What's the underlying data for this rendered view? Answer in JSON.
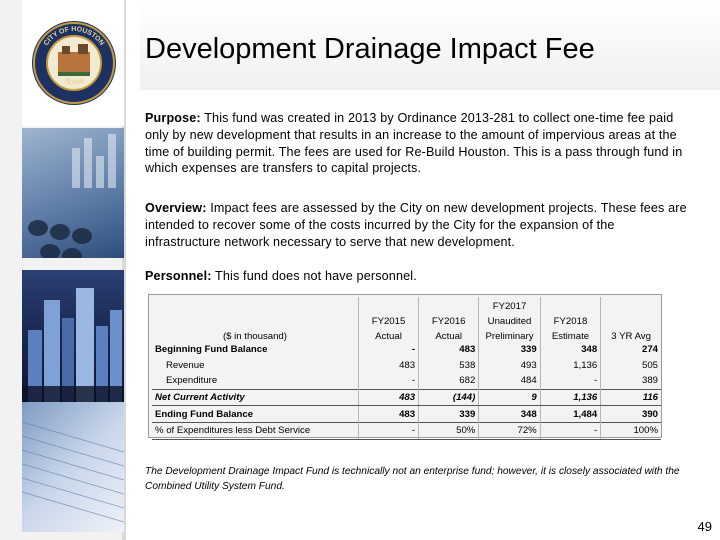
{
  "title": "Development Drainage Impact Fee",
  "purpose": {
    "label": "Purpose:",
    "text": "This fund was created in 2013 by Ordinance 2013-281 to collect one-time fee paid only by new development that results in an increase to the amount of impervious areas at the time of building permit. The fees are used for Re-Build Houston. This is a pass through fund in which expenses are transfers to capital projects."
  },
  "overview": {
    "label": "Overview:",
    "text": "Impact fees are assessed by the City on new development projects. These fees are intended to recover some of the costs incurred by the City for the expansion of the infrastructure network necessary to serve that new development."
  },
  "personnel": {
    "label": "Personnel:",
    "text": "This fund does not have personnel."
  },
  "table": {
    "unit_label": "($ in thousand)",
    "headers": [
      {
        "l1": "",
        "l2": "FY2015",
        "l3": "Actual"
      },
      {
        "l1": "",
        "l2": "FY2016",
        "l3": "Actual"
      },
      {
        "l1": "FY2017",
        "l2": "Unaudited",
        "l3": "Preliminary"
      },
      {
        "l1": "",
        "l2": "FY2018",
        "l3": "Estimate"
      },
      {
        "l1": "",
        "l2": "",
        "l3": "3 YR Avg"
      }
    ],
    "rows": [
      {
        "label": "Beginning Fund Balance",
        "values": [
          "-",
          "483",
          "339",
          "348",
          "274"
        ]
      },
      {
        "label": "Revenue",
        "values": [
          "483",
          "538",
          "493",
          "1,136",
          "505"
        ]
      },
      {
        "label": "Expenditure",
        "values": [
          "-",
          "682",
          "484",
          "-",
          "389"
        ]
      },
      {
        "label": "Net Current Activity",
        "values": [
          "483",
          "(144)",
          "9",
          "1,136",
          "116"
        ]
      },
      {
        "label": "Ending Fund Balance",
        "values": [
          "483",
          "339",
          "348",
          "1,484",
          "390"
        ]
      },
      {
        "label": "% of Expenditures less Debt Service",
        "values": [
          "-",
          "50%",
          "72%",
          "-",
          "100%"
        ]
      }
    ]
  },
  "footnote": "The Development Drainage Impact Fund is technically not an enterprise fund; however, it is closely associated with the Combined Utility System Fund.",
  "page_number": "49",
  "seal": {
    "top_text": "CITY OF HOUSTON",
    "bottom_text": "TEXAS"
  }
}
